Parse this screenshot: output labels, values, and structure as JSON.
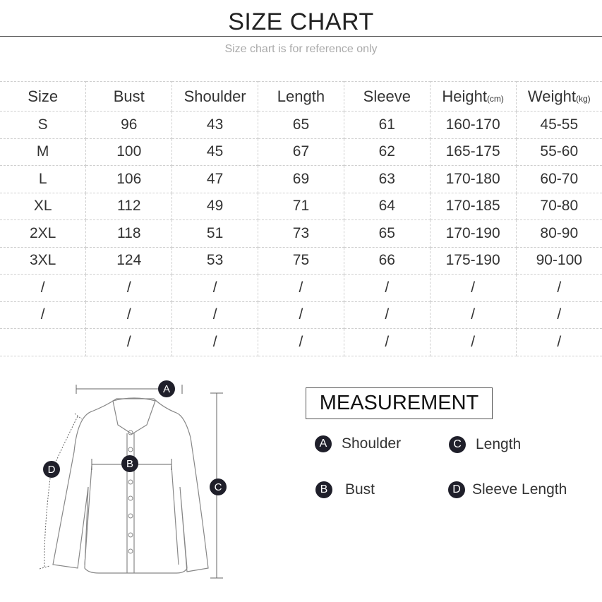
{
  "header": {
    "title": "SIZE CHART",
    "subtitle": "Size chart is for reference only"
  },
  "table": {
    "headers": [
      "Size",
      "Bust",
      "Shoulder",
      "Length",
      "Sleeve",
      "Height",
      "Weight"
    ],
    "units": {
      "height": "(cm)",
      "weight": "(kg)"
    },
    "rows": [
      [
        "S",
        "96",
        "43",
        "65",
        "61",
        "160-170",
        "45-55"
      ],
      [
        "M",
        "100",
        "45",
        "67",
        "62",
        "165-175",
        "55-60"
      ],
      [
        "L",
        "106",
        "47",
        "69",
        "63",
        "170-180",
        "60-70"
      ],
      [
        "XL",
        "112",
        "49",
        "71",
        "64",
        "170-185",
        "70-80"
      ],
      [
        "2XL",
        "118",
        "51",
        "73",
        "65",
        "170-190",
        "80-90"
      ],
      [
        "3XL",
        "124",
        "53",
        "75",
        "66",
        "175-190",
        "90-100"
      ],
      [
        "/",
        "/",
        "/",
        "/",
        "/",
        "/",
        "/"
      ],
      [
        "/",
        "/",
        "/",
        "/",
        "/",
        "/",
        "/"
      ],
      [
        "",
        "/",
        "/",
        "/",
        "/",
        "/",
        "/"
      ]
    ]
  },
  "measurement": {
    "title": "MEASUREMENT",
    "items": [
      {
        "letter": "A",
        "label": "Shoulder"
      },
      {
        "letter": "B",
        "label": "Bust"
      },
      {
        "letter": "C",
        "label": "Length"
      },
      {
        "letter": "D",
        "label": "Sleeve Length"
      }
    ]
  },
  "colors": {
    "badge": "#1f1f2a",
    "text": "#333333",
    "grid": "#cfcfcf"
  }
}
